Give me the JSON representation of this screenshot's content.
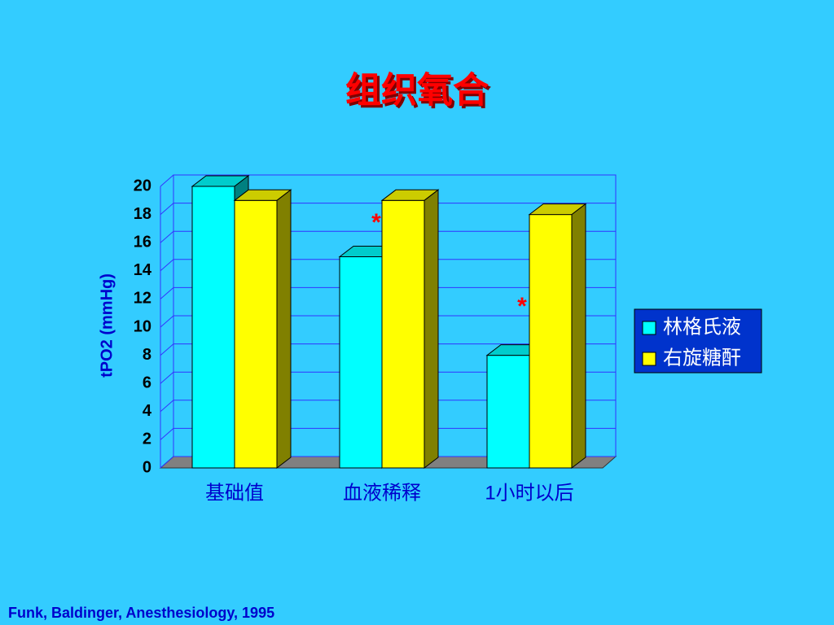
{
  "chart_data": {
    "type": "bar3d",
    "title": "组织氧合",
    "y_label": "tPO2 (mmHg)",
    "categories": [
      "基础值",
      "血液稀释",
      "1小时以后"
    ],
    "series": [
      {
        "name": "林格氏液",
        "color": "#00ffff",
        "values": [
          20,
          15,
          8
        ]
      },
      {
        "name": "右旋糖酐",
        "color": "#ffff00",
        "values": [
          19,
          19,
          18
        ]
      }
    ],
    "ylim": [
      0,
      20
    ],
    "yticks": [
      0,
      2,
      4,
      6,
      8,
      10,
      12,
      14,
      16,
      18,
      20
    ],
    "grid": true,
    "legend": "right",
    "annotations": [
      "*",
      "*"
    ],
    "source": "Funk, Baldinger, Anesthesiology, 1995"
  }
}
